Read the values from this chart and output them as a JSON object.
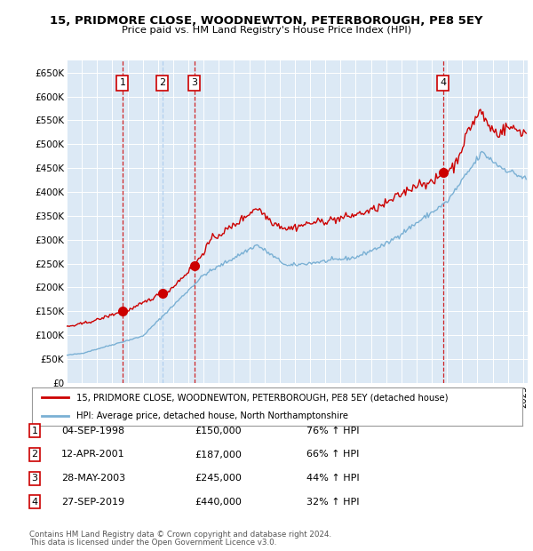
{
  "title": "15, PRIDMORE CLOSE, WOODNEWTON, PETERBOROUGH, PE8 5EY",
  "subtitle": "Price paid vs. HM Land Registry's House Price Index (HPI)",
  "ylim": [
    0,
    675000
  ],
  "yticks": [
    0,
    50000,
    100000,
    150000,
    200000,
    250000,
    300000,
    350000,
    400000,
    450000,
    500000,
    550000,
    600000,
    650000
  ],
  "xlim_start": 1995.0,
  "xlim_end": 2025.3,
  "bg_color": "#dce9f5",
  "grid_color": "#ffffff",
  "red_line_color": "#cc0000",
  "blue_line_color": "#7ab0d4",
  "sales": [
    {
      "num": 1,
      "date_dec": 1998.67,
      "price": 150000,
      "vline_color": "#cc0000"
    },
    {
      "num": 2,
      "date_dec": 2001.28,
      "price": 187000,
      "vline_color": "#aaccee"
    },
    {
      "num": 3,
      "date_dec": 2003.4,
      "price": 245000,
      "vline_color": "#cc0000"
    },
    {
      "num": 4,
      "date_dec": 2019.74,
      "price": 440000,
      "vline_color": "#cc0000"
    }
  ],
  "legend_line1": "15, PRIDMORE CLOSE, WOODNEWTON, PETERBOROUGH, PE8 5EY (detached house)",
  "legend_line2": "HPI: Average price, detached house, North Northamptonshire",
  "footer1": "Contains HM Land Registry data © Crown copyright and database right 2024.",
  "footer2": "This data is licensed under the Open Government Licence v3.0.",
  "table_rows": [
    {
      "num": 1,
      "date": "04-SEP-1998",
      "price": "£150,000",
      "pct": "76% ↑ HPI"
    },
    {
      "num": 2,
      "date": "12-APR-2001",
      "price": "£187,000",
      "pct": "66% ↑ HPI"
    },
    {
      "num": 3,
      "date": "28-MAY-2003",
      "price": "£245,000",
      "pct": "44% ↑ HPI"
    },
    {
      "num": 4,
      "date": "27-SEP-2019",
      "price": "£440,000",
      "pct": "32% ↑ HPI"
    }
  ]
}
